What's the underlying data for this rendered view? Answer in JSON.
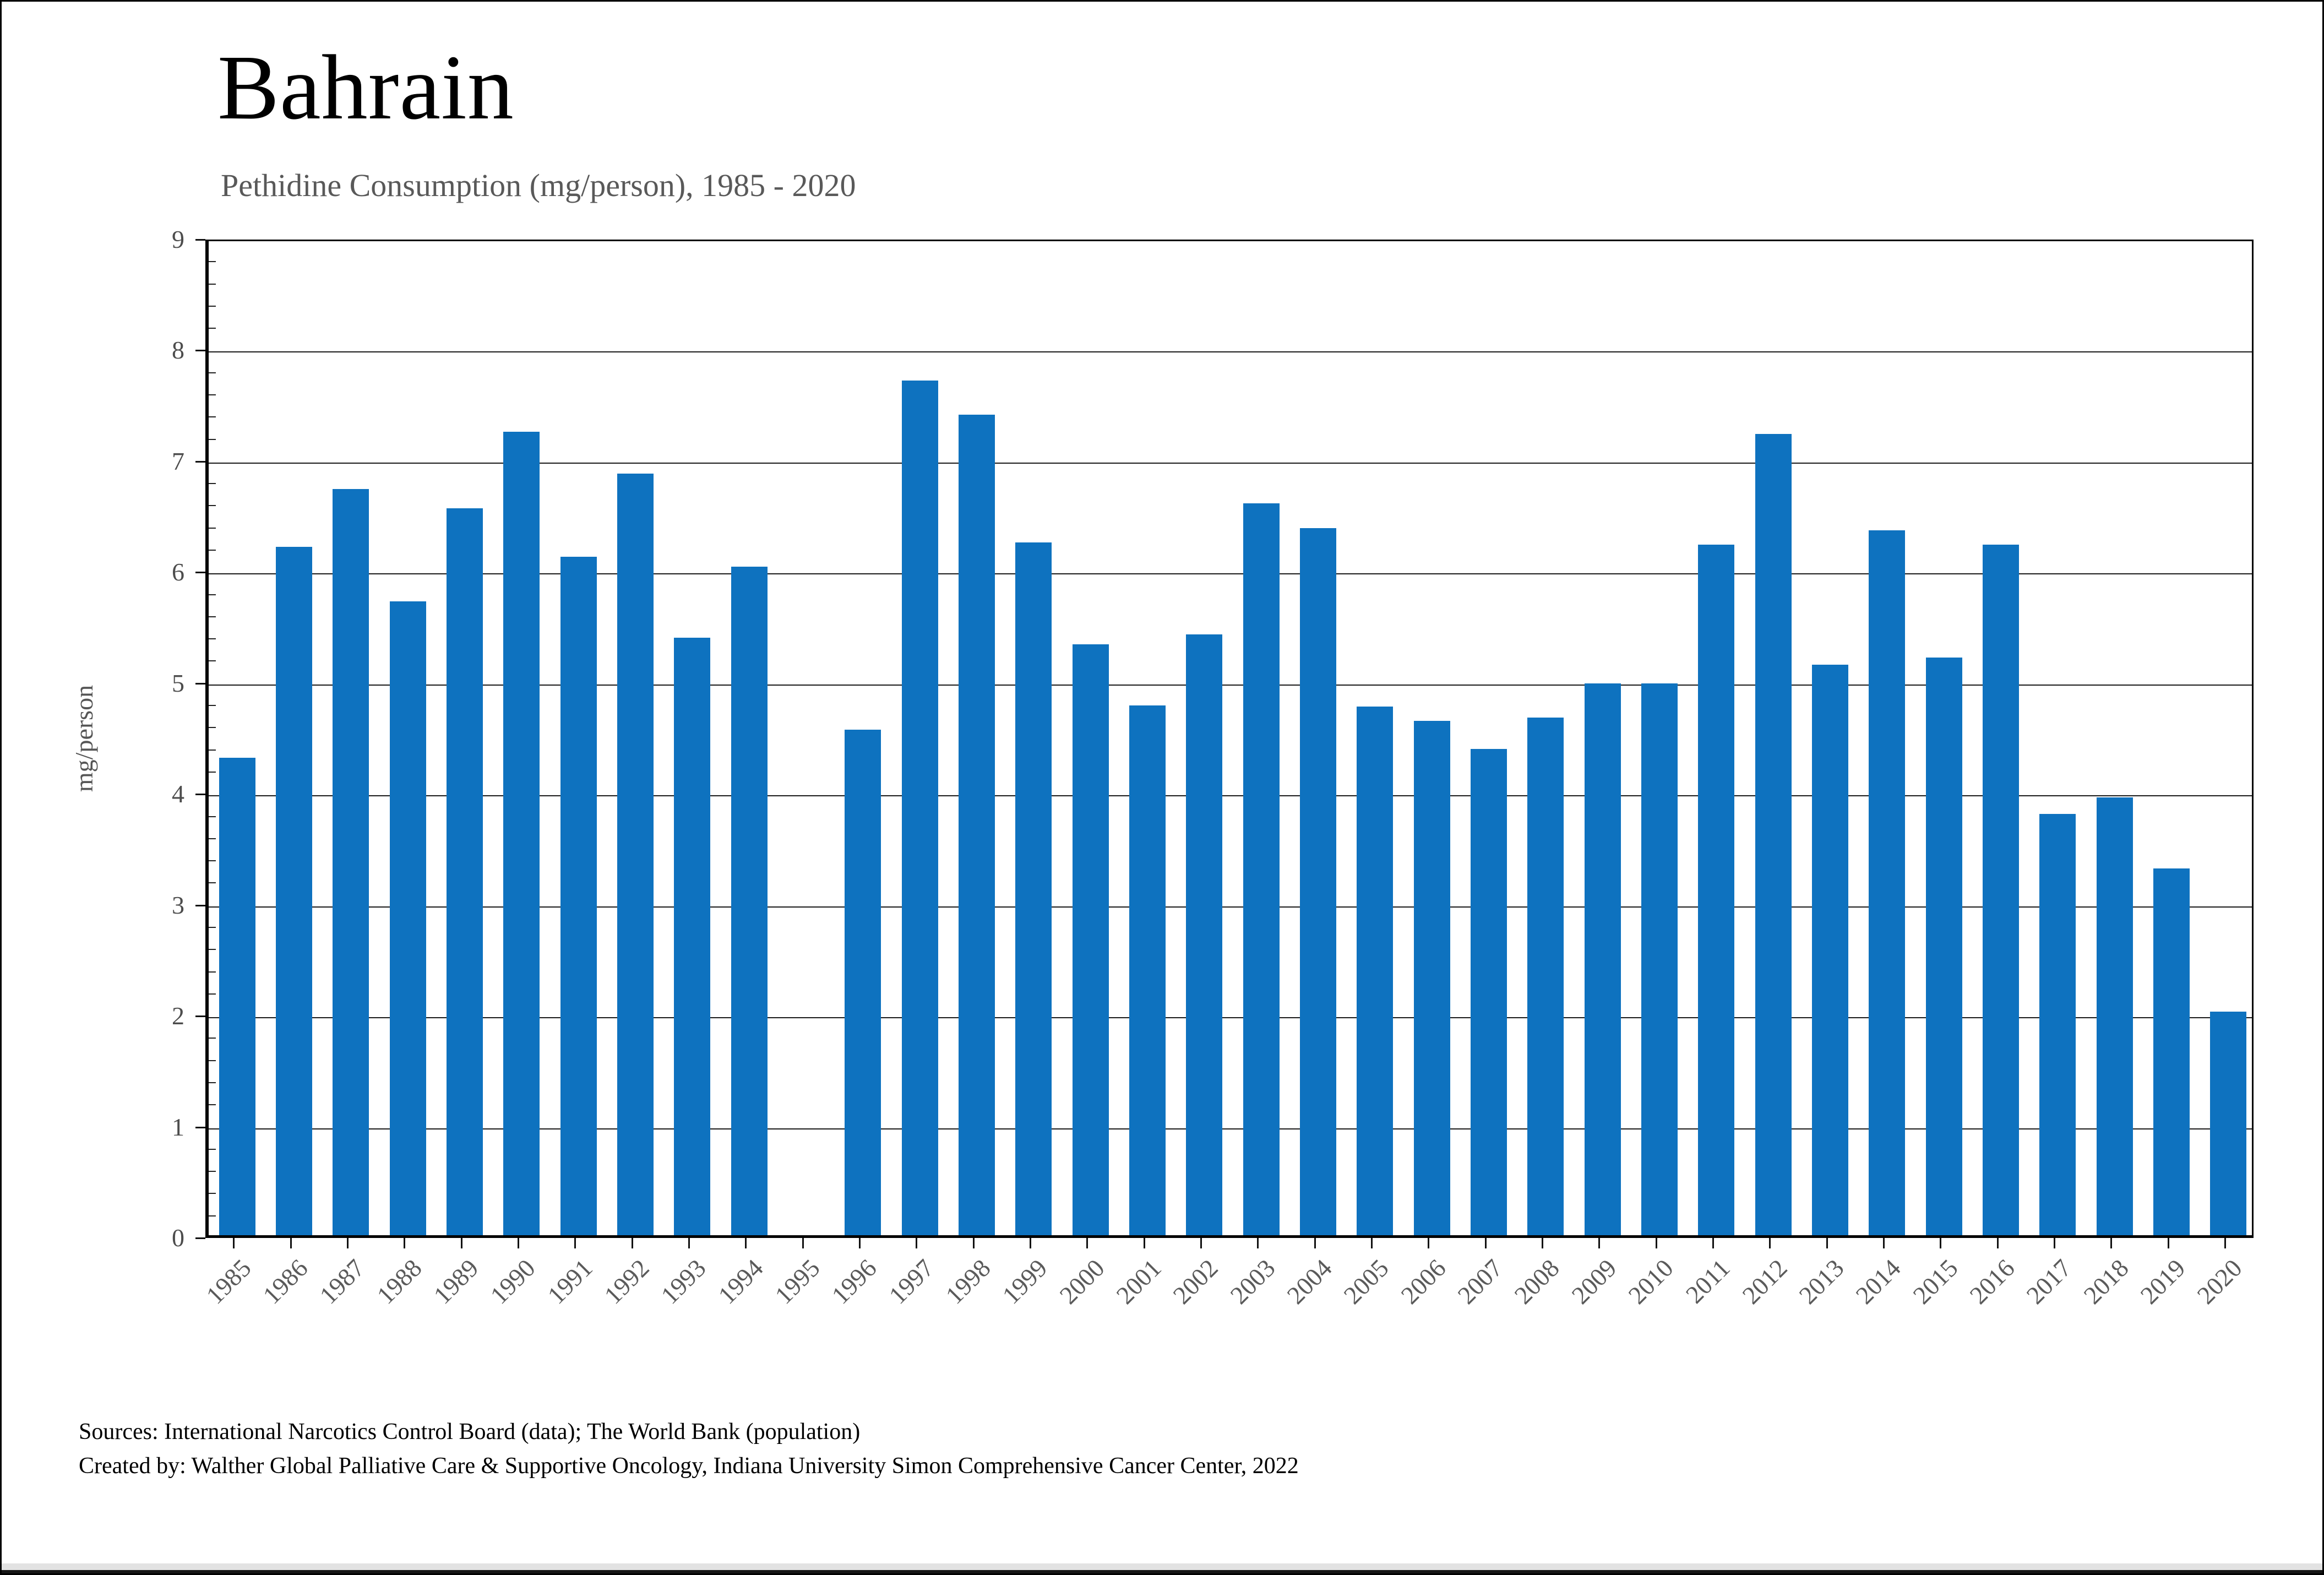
{
  "header": {
    "title": "Bahrain",
    "subtitle": "Pethidine Consumption (mg/person), 1985 - 2020"
  },
  "chart_data": {
    "type": "bar",
    "title": "Bahrain",
    "subtitle": "Pethidine Consumption (mg/person), 1985 - 2020",
    "categories": [
      "1985",
      "1986",
      "1987",
      "1988",
      "1989",
      "1990",
      "1991",
      "1992",
      "1993",
      "1994",
      "1995",
      "1996",
      "1997",
      "1998",
      "1999",
      "2000",
      "2001",
      "2002",
      "2003",
      "2004",
      "2005",
      "2006",
      "2007",
      "2008",
      "2009",
      "2010",
      "2011",
      "2012",
      "2013",
      "2014",
      "2015",
      "2016",
      "2017",
      "2018",
      "2019",
      "2020"
    ],
    "values": [
      4.33,
      6.23,
      6.75,
      5.74,
      6.58,
      7.27,
      6.14,
      6.89,
      5.41,
      6.05,
      null,
      4.58,
      7.73,
      7.42,
      6.27,
      5.35,
      4.8,
      5.44,
      6.62,
      6.4,
      4.79,
      4.66,
      4.41,
      4.69,
      5.0,
      5.0,
      6.25,
      7.25,
      5.17,
      6.38,
      5.23,
      6.25,
      3.82,
      3.97,
      3.33,
      2.04
    ],
    "xlabel": "",
    "ylabel": "mg/person",
    "ylim": [
      0,
      9
    ],
    "ytick_step": 1,
    "yminor_step": 0.2,
    "grid": "horizontal-major",
    "legend": "none",
    "bar_color": "#0e72bf"
  },
  "footer": {
    "sources": "Sources: International Narcotics Control Board (data); The World Bank (population)",
    "created_by": "Created by: Walther Global Palliative Care & Supportive Oncology, Indiana University Simon Comprehensive Cancer Center, 2022"
  },
  "colors": {
    "bar": "#0e72bf",
    "subtitle": "#595959",
    "axis": "#000000",
    "tick_text": "#4d4d4d",
    "bottom_bar": "#e2e2e2"
  }
}
